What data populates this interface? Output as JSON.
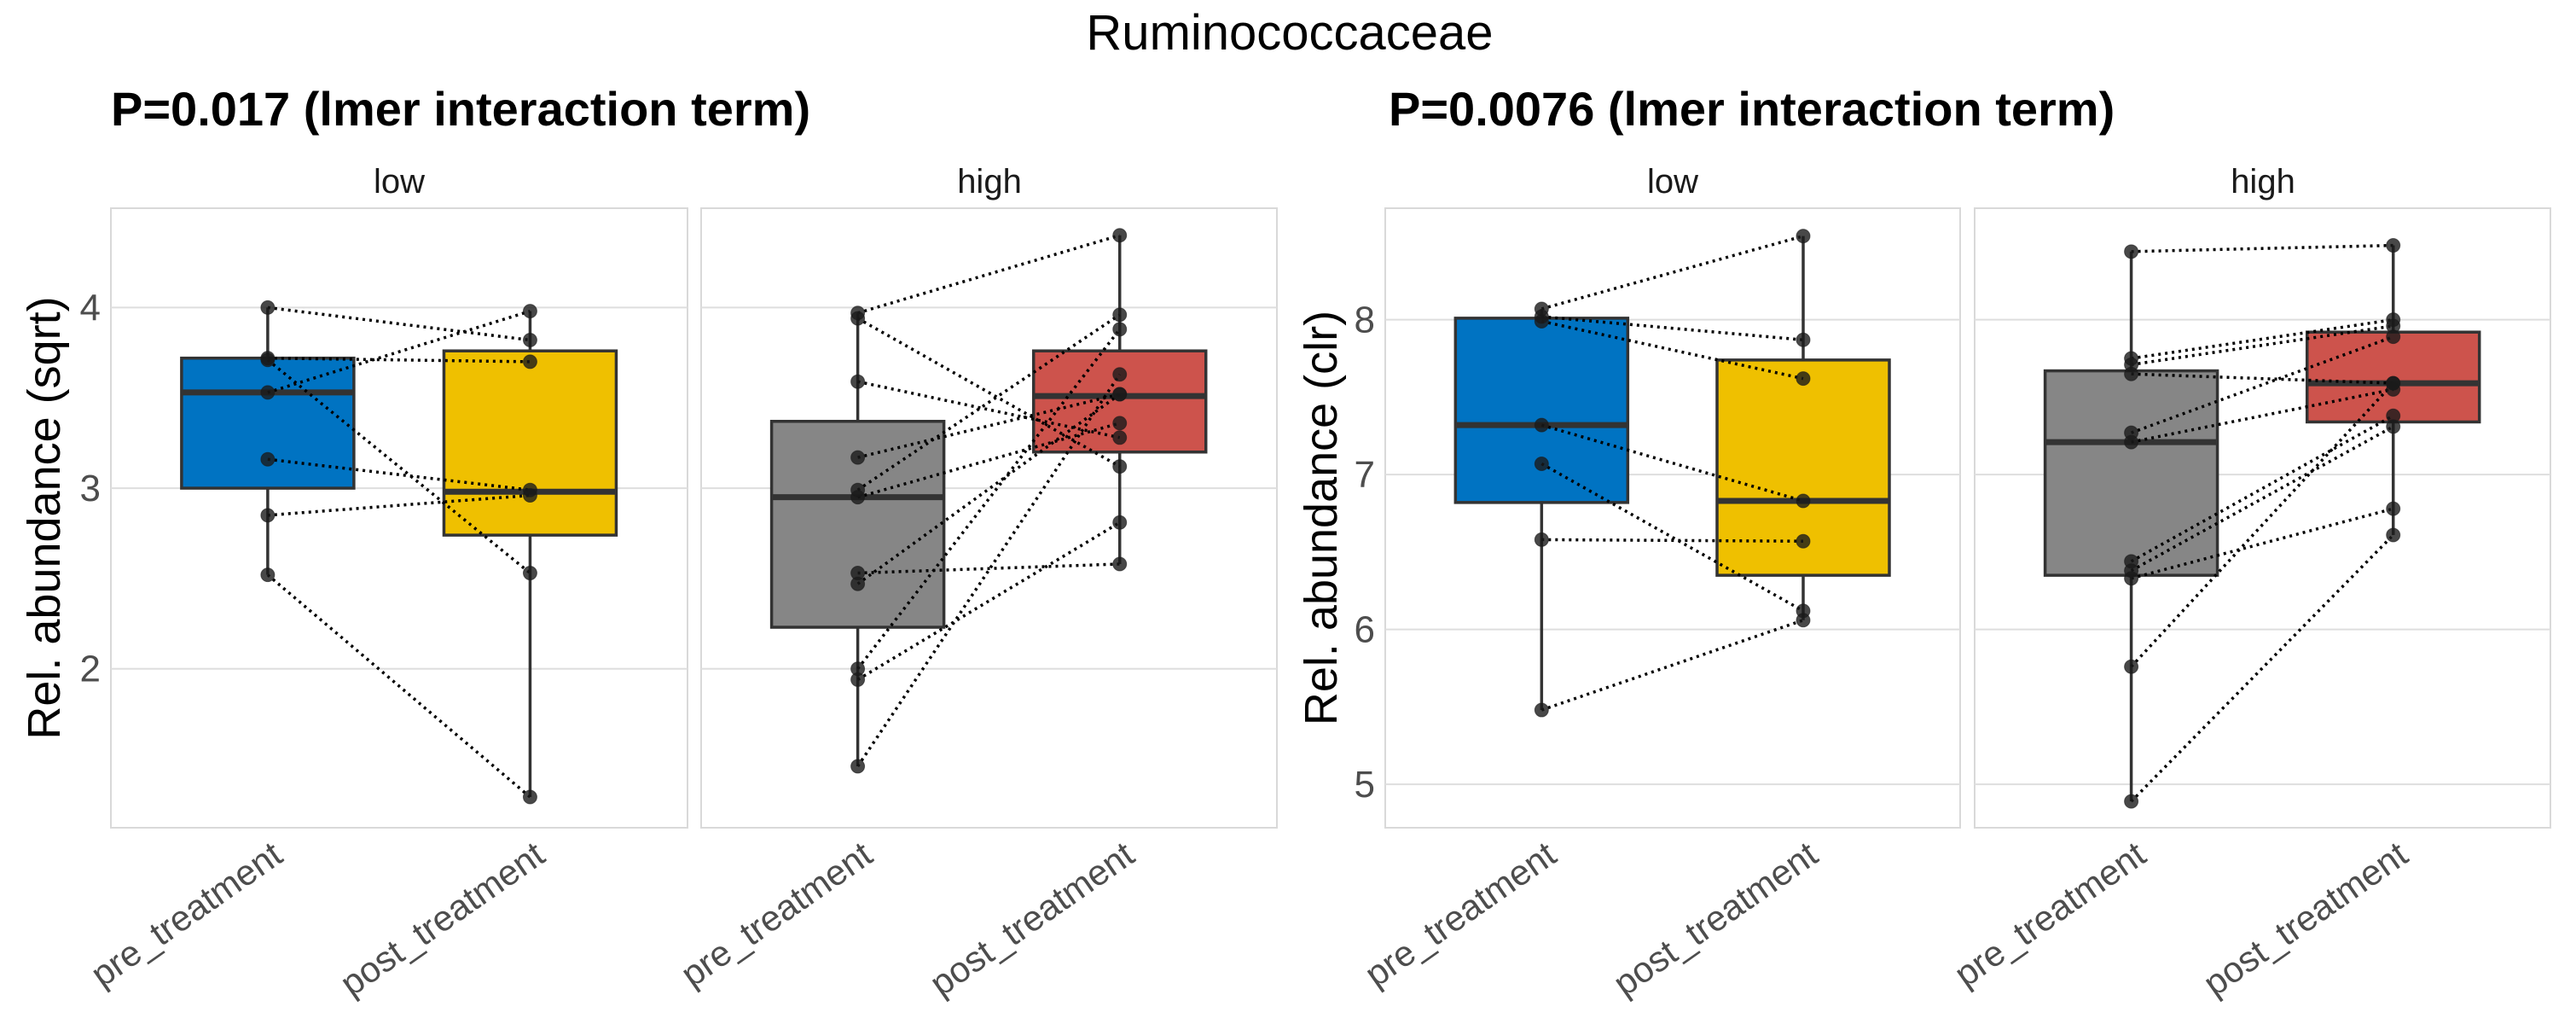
{
  "chart_data": {
    "type": "box",
    "title": "Ruminococcaceae",
    "palette": {
      "low_pre": "#0073C2",
      "low_post": "#EFC000",
      "high_pre": "#868686",
      "high_post": "#CD534C"
    },
    "plots": [
      {
        "subtitle": "P=0.017 (lmer interaction term)",
        "ylabel": "Rel. abundance (sqrt)",
        "ylim": [
          1.12,
          4.55
        ],
        "yticks": [
          2,
          3,
          4
        ],
        "ytick_labels": [
          "2",
          "3",
          "4"
        ],
        "grid": true,
        "facets": [
          {
            "label": "low",
            "categories": [
              "pre_treatment",
              "post_treatment"
            ],
            "colors": [
              "low_pre",
              "low_post"
            ],
            "boxes": [
              {
                "q1": 3.0,
                "median": 3.53,
                "q3": 3.72,
                "whisker_low": 2.52,
                "whisker_high": 4.0
              },
              {
                "q1": 2.74,
                "median": 2.98,
                "q3": 3.76,
                "whisker_low": 1.29,
                "whisker_high": 3.98
              }
            ],
            "pairs": [
              [
                4.0,
                3.82
              ],
              [
                3.72,
                3.7
              ],
              [
                3.71,
                2.53
              ],
              [
                3.53,
                3.98
              ],
              [
                3.16,
                2.99
              ],
              [
                2.85,
                2.96
              ],
              [
                2.52,
                1.29
              ]
            ]
          },
          {
            "label": "high",
            "categories": [
              "pre_treatment",
              "post_treatment"
            ],
            "colors": [
              "high_pre",
              "high_post"
            ],
            "boxes": [
              {
                "q1": 2.23,
                "median": 2.95,
                "q3": 3.37,
                "whisker_low": 1.46,
                "whisker_high": 3.97
              },
              {
                "q1": 3.2,
                "median": 3.51,
                "q3": 3.76,
                "whisker_low": 2.58,
                "whisker_high": 4.4
              }
            ],
            "pairs": [
              [
                3.97,
                4.4
              ],
              [
                3.94,
                3.12
              ],
              [
                3.59,
                3.28
              ],
              [
                3.17,
                3.52
              ],
              [
                2.99,
                3.96
              ],
              [
                2.95,
                3.36
              ],
              [
                2.53,
                2.58
              ],
              [
                2.47,
                3.52
              ],
              [
                2.0,
                3.88
              ],
              [
                1.94,
                2.81
              ],
              [
                1.46,
                3.63
              ]
            ]
          }
        ]
      },
      {
        "subtitle": "P=0.0076 (lmer interaction term)",
        "ylabel": "Rel. abundance (clr)",
        "ylim": [
          4.72,
          8.72
        ],
        "yticks": [
          5,
          6,
          7,
          8
        ],
        "ytick_labels": [
          "5",
          "6",
          "7",
          "8"
        ],
        "grid": true,
        "facets": [
          {
            "label": "low",
            "categories": [
              "pre_treatment",
              "post_treatment"
            ],
            "colors": [
              "low_pre",
              "low_post"
            ],
            "boxes": [
              {
                "q1": 6.82,
                "median": 7.32,
                "q3": 8.01,
                "whisker_low": 5.48,
                "whisker_high": 8.07
              },
              {
                "q1": 6.35,
                "median": 6.83,
                "q3": 7.74,
                "whisker_low": 6.06,
                "whisker_high": 8.54
              }
            ],
            "pairs": [
              [
                8.07,
                8.54
              ],
              [
                8.02,
                7.87
              ],
              [
                7.99,
                7.62
              ],
              [
                7.32,
                6.83
              ],
              [
                7.07,
                6.12
              ],
              [
                6.58,
                6.57
              ],
              [
                5.48,
                6.06
              ]
            ]
          },
          {
            "label": "high",
            "categories": [
              "pre_treatment",
              "post_treatment"
            ],
            "colors": [
              "high_pre",
              "high_post"
            ],
            "boxes": [
              {
                "q1": 6.35,
                "median": 7.21,
                "q3": 7.67,
                "whisker_low": 4.89,
                "whisker_high": 8.44
              },
              {
                "q1": 7.34,
                "median": 7.59,
                "q3": 7.92,
                "whisker_low": 6.61,
                "whisker_high": 8.48
              }
            ],
            "pairs": [
              [
                8.44,
                8.48
              ],
              [
                7.75,
                8.0
              ],
              [
                7.71,
                7.96
              ],
              [
                7.65,
                7.59
              ],
              [
                7.27,
                7.89
              ],
              [
                7.21,
                7.55
              ],
              [
                6.44,
                7.38
              ],
              [
                6.38,
                7.31
              ],
              [
                6.33,
                6.78
              ],
              [
                5.76,
                7.59
              ],
              [
                4.89,
                6.61
              ]
            ]
          }
        ]
      }
    ]
  }
}
